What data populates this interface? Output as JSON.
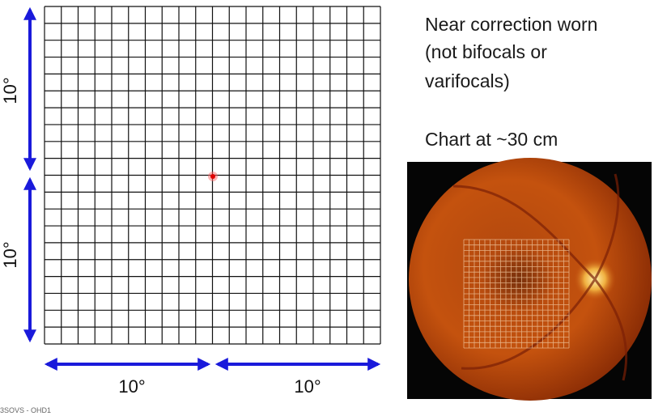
{
  "grid_labels": {
    "left_top": "10°",
    "left_bottom": "10°",
    "bottom_left": "10°",
    "bottom_right": "10°"
  },
  "instructions": [
    "Near correction worn",
    "(not bifocals or",
    "varifocals)",
    "Chart at ~30 cm"
  ],
  "footer": "3SOVS - OHD1"
}
